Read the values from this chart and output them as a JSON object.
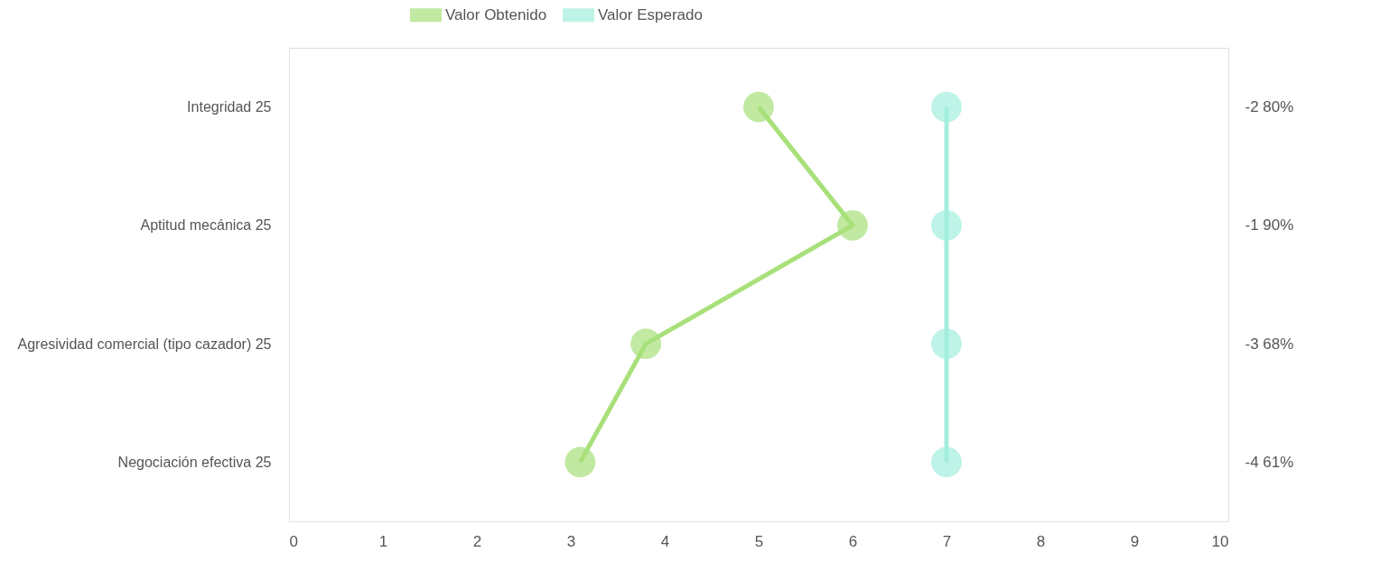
{
  "chart_data": {
    "type": "line",
    "orientation": "horizontal",
    "categories": [
      "Integridad   25",
      "Aptitud mecánica   25",
      "Agresividad comercial (tipo cazador)   25",
      "Negociación efectiva   25"
    ],
    "y2_categories": [
      "-2   80%",
      "-1   90%",
      "-3   68%",
      "-4   61%"
    ],
    "xlim": [
      0,
      10
    ],
    "xticks": [
      0,
      1,
      2,
      3,
      4,
      5,
      6,
      7,
      8,
      9,
      10
    ],
    "grid": false,
    "legend": "top",
    "marker": "circle",
    "line_style": "solid",
    "series": [
      {
        "name": "Valor Obtenido",
        "color": "#a8e07a",
        "values": [
          5,
          6,
          3.8,
          3.1
        ]
      },
      {
        "name": "Valor Esperado",
        "color": "#a3eedd",
        "values": [
          7,
          7,
          7,
          7
        ]
      }
    ]
  }
}
